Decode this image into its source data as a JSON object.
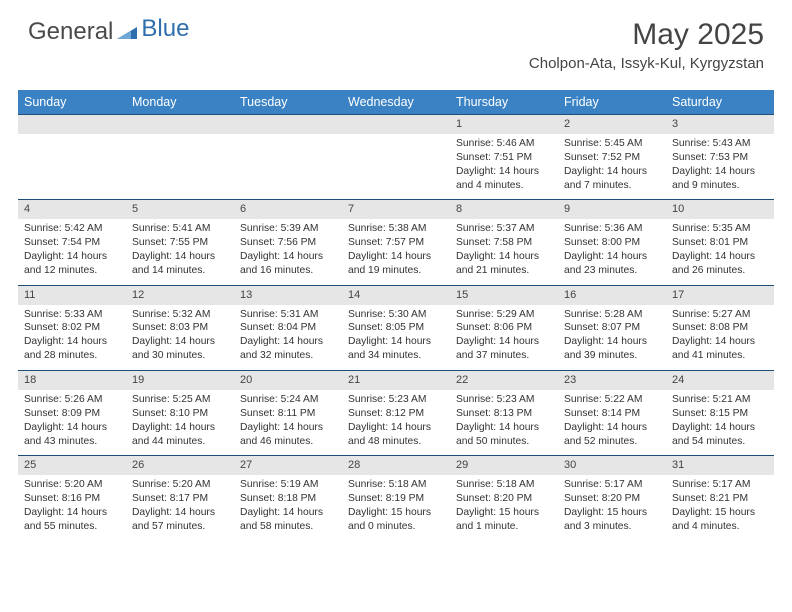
{
  "logo": {
    "part1": "General",
    "part2": "Blue"
  },
  "title": "May 2025",
  "location": "Cholpon-Ata, Issyk-Kul, Kyrgyzstan",
  "colors": {
    "header_bg": "#3a82c4",
    "header_text": "#ffffff",
    "daynum_bg": "#e6e6e6",
    "row_border": "#1f4e79",
    "logo_blue": "#2f6fad",
    "text": "#333333"
  },
  "columns": [
    "Sunday",
    "Monday",
    "Tuesday",
    "Wednesday",
    "Thursday",
    "Friday",
    "Saturday"
  ],
  "weeks": [
    [
      null,
      null,
      null,
      null,
      {
        "n": "1",
        "sr": "5:46 AM",
        "ss": "7:51 PM",
        "dl": "14 hours and 4 minutes."
      },
      {
        "n": "2",
        "sr": "5:45 AM",
        "ss": "7:52 PM",
        "dl": "14 hours and 7 minutes."
      },
      {
        "n": "3",
        "sr": "5:43 AM",
        "ss": "7:53 PM",
        "dl": "14 hours and 9 minutes."
      }
    ],
    [
      {
        "n": "4",
        "sr": "5:42 AM",
        "ss": "7:54 PM",
        "dl": "14 hours and 12 minutes."
      },
      {
        "n": "5",
        "sr": "5:41 AM",
        "ss": "7:55 PM",
        "dl": "14 hours and 14 minutes."
      },
      {
        "n": "6",
        "sr": "5:39 AM",
        "ss": "7:56 PM",
        "dl": "14 hours and 16 minutes."
      },
      {
        "n": "7",
        "sr": "5:38 AM",
        "ss": "7:57 PM",
        "dl": "14 hours and 19 minutes."
      },
      {
        "n": "8",
        "sr": "5:37 AM",
        "ss": "7:58 PM",
        "dl": "14 hours and 21 minutes."
      },
      {
        "n": "9",
        "sr": "5:36 AM",
        "ss": "8:00 PM",
        "dl": "14 hours and 23 minutes."
      },
      {
        "n": "10",
        "sr": "5:35 AM",
        "ss": "8:01 PM",
        "dl": "14 hours and 26 minutes."
      }
    ],
    [
      {
        "n": "11",
        "sr": "5:33 AM",
        "ss": "8:02 PM",
        "dl": "14 hours and 28 minutes."
      },
      {
        "n": "12",
        "sr": "5:32 AM",
        "ss": "8:03 PM",
        "dl": "14 hours and 30 minutes."
      },
      {
        "n": "13",
        "sr": "5:31 AM",
        "ss": "8:04 PM",
        "dl": "14 hours and 32 minutes."
      },
      {
        "n": "14",
        "sr": "5:30 AM",
        "ss": "8:05 PM",
        "dl": "14 hours and 34 minutes."
      },
      {
        "n": "15",
        "sr": "5:29 AM",
        "ss": "8:06 PM",
        "dl": "14 hours and 37 minutes."
      },
      {
        "n": "16",
        "sr": "5:28 AM",
        "ss": "8:07 PM",
        "dl": "14 hours and 39 minutes."
      },
      {
        "n": "17",
        "sr": "5:27 AM",
        "ss": "8:08 PM",
        "dl": "14 hours and 41 minutes."
      }
    ],
    [
      {
        "n": "18",
        "sr": "5:26 AM",
        "ss": "8:09 PM",
        "dl": "14 hours and 43 minutes."
      },
      {
        "n": "19",
        "sr": "5:25 AM",
        "ss": "8:10 PM",
        "dl": "14 hours and 44 minutes."
      },
      {
        "n": "20",
        "sr": "5:24 AM",
        "ss": "8:11 PM",
        "dl": "14 hours and 46 minutes."
      },
      {
        "n": "21",
        "sr": "5:23 AM",
        "ss": "8:12 PM",
        "dl": "14 hours and 48 minutes."
      },
      {
        "n": "22",
        "sr": "5:23 AM",
        "ss": "8:13 PM",
        "dl": "14 hours and 50 minutes."
      },
      {
        "n": "23",
        "sr": "5:22 AM",
        "ss": "8:14 PM",
        "dl": "14 hours and 52 minutes."
      },
      {
        "n": "24",
        "sr": "5:21 AM",
        "ss": "8:15 PM",
        "dl": "14 hours and 54 minutes."
      }
    ],
    [
      {
        "n": "25",
        "sr": "5:20 AM",
        "ss": "8:16 PM",
        "dl": "14 hours and 55 minutes."
      },
      {
        "n": "26",
        "sr": "5:20 AM",
        "ss": "8:17 PM",
        "dl": "14 hours and 57 minutes."
      },
      {
        "n": "27",
        "sr": "5:19 AM",
        "ss": "8:18 PM",
        "dl": "14 hours and 58 minutes."
      },
      {
        "n": "28",
        "sr": "5:18 AM",
        "ss": "8:19 PM",
        "dl": "15 hours and 0 minutes."
      },
      {
        "n": "29",
        "sr": "5:18 AM",
        "ss": "8:20 PM",
        "dl": "15 hours and 1 minute."
      },
      {
        "n": "30",
        "sr": "5:17 AM",
        "ss": "8:20 PM",
        "dl": "15 hours and 3 minutes."
      },
      {
        "n": "31",
        "sr": "5:17 AM",
        "ss": "8:21 PM",
        "dl": "15 hours and 4 minutes."
      }
    ]
  ],
  "labels": {
    "sunrise": "Sunrise:",
    "sunset": "Sunset:",
    "daylight": "Daylight:"
  }
}
